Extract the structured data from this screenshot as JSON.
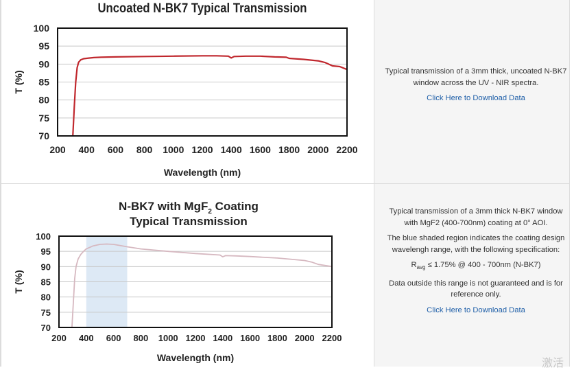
{
  "chart_data": [
    {
      "type": "line",
      "title": "Uncoated N-BK7 Typical Transmission",
      "xlabel": "Wavelength (nm)",
      "ylabel": "T (%)",
      "xlim": [
        200,
        2200
      ],
      "ylim": [
        70,
        100
      ],
      "xticks": [
        "200",
        "400",
        "600",
        "800",
        "1000",
        "1200",
        "1400",
        "1600",
        "1800",
        "2000",
        "2200"
      ],
      "yticks": [
        "70",
        "75",
        "80",
        "85",
        "90",
        "95",
        "100"
      ],
      "grid": true,
      "color": "#c0272d",
      "series": [
        {
          "x": [
            305,
            315,
            325,
            335,
            345,
            360,
            380,
            400,
            450,
            500,
            600,
            800,
            1000,
            1200,
            1300,
            1380,
            1400,
            1420,
            1500,
            1600,
            1700,
            1780,
            1800,
            1900,
            2000,
            2050,
            2100,
            2150,
            2200
          ],
          "y": [
            70,
            78,
            85,
            89,
            90.5,
            91.2,
            91.5,
            91.6,
            91.8,
            91.9,
            92.0,
            92.1,
            92.2,
            92.3,
            92.3,
            92.2,
            91.7,
            92.1,
            92.2,
            92.2,
            92.0,
            91.9,
            91.6,
            91.3,
            90.9,
            90.4,
            89.5,
            89.3,
            88.5
          ]
        }
      ]
    },
    {
      "type": "area",
      "title_line1": "N-BK7 with MgF",
      "title_sub": "2",
      "title_line1_end": " Coating",
      "title_line2": "Typical Transmission",
      "xlabel": "Wavelength (nm)",
      "ylabel": "T (%)",
      "xlim": [
        200,
        2200
      ],
      "ylim": [
        70,
        100
      ],
      "xticks": [
        "200",
        "400",
        "600",
        "800",
        "1000",
        "1200",
        "1400",
        "1600",
        "1800",
        "2000",
        "2200"
      ],
      "yticks": [
        "70",
        "75",
        "80",
        "85",
        "90",
        "95",
        "100"
      ],
      "grid": true,
      "color": "#d6b8c0",
      "shaded_region": [
        400,
        700
      ],
      "shade_color": "#dde9f5",
      "series": [
        {
          "x": [
            295,
            305,
            315,
            325,
            340,
            360,
            380,
            400,
            450,
            500,
            550,
            600,
            700,
            800,
            1000,
            1200,
            1380,
            1400,
            1420,
            1500,
            1600,
            1800,
            2000,
            2050,
            2100,
            2200
          ],
          "y": [
            70,
            78,
            86,
            90,
            92.5,
            94,
            95,
            95.8,
            96.8,
            97.3,
            97.4,
            97.3,
            96.5,
            95.8,
            95.0,
            94.3,
            93.8,
            93.2,
            93.6,
            93.5,
            93.3,
            92.8,
            92.0,
            91.5,
            90.7,
            90.0
          ]
        }
      ]
    }
  ],
  "row1": {
    "description": "Typical transmission of a 3mm thick, uncoated N-BK7 window across the UV - NIR spectra.",
    "link": "Click Here to Download Data"
  },
  "row2": {
    "description": "Typical transmission of a 3mm thick N-BK7 window with MgF2 (400-700nm) coating at 0° AOI.",
    "description2": "The blue shaded region indicates the coating design wavelengh range, with the following specification:",
    "spec_r": "R",
    "spec_sub": "avg",
    "spec_rest": " ≤ 1.75% @ 400 - 700nm (N-BK7)",
    "note": "Data outside this range is not guaranteed and is for reference only.",
    "link": "Click Here to Download Data"
  },
  "watermark": "激活"
}
